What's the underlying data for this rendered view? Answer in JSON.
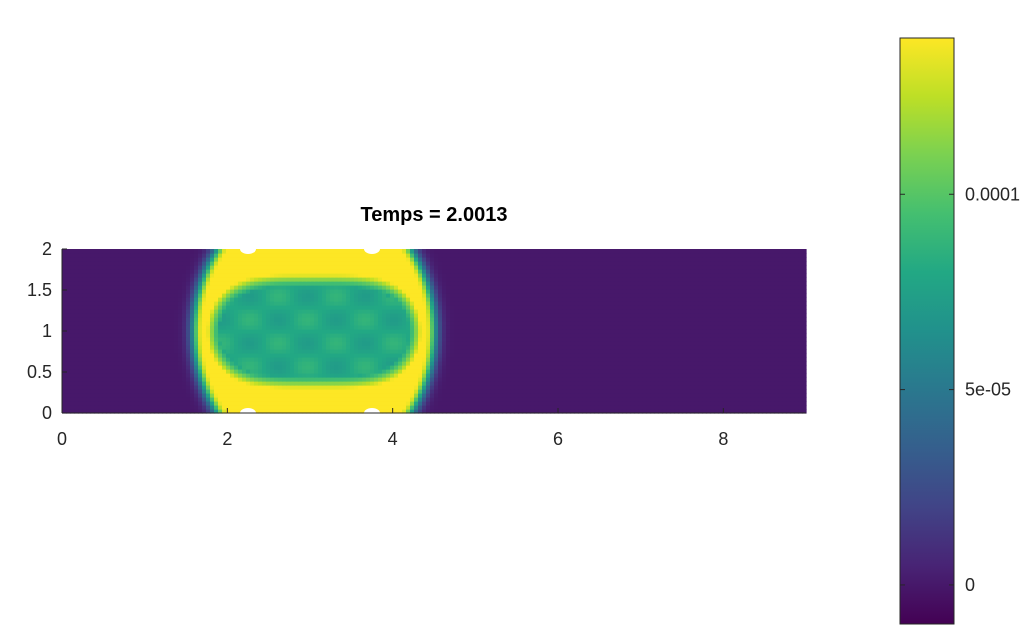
{
  "chart_data": {
    "type": "heatmap",
    "title": "Temps = 2.0013",
    "xlabel": "",
    "ylabel": "",
    "xlim": [
      0,
      9
    ],
    "ylim": [
      0,
      2
    ],
    "x_ticks": [
      0,
      2,
      4,
      6,
      8
    ],
    "x_tick_labels": [
      "0",
      "2",
      "4",
      "6",
      "8"
    ],
    "y_ticks": [
      0,
      0.5,
      1,
      1.5,
      2
    ],
    "y_tick_labels": [
      "0",
      "0.5",
      "1",
      "1.5",
      "2"
    ],
    "colormap": "viridis",
    "colorbar": {
      "clim": [
        -1e-05,
        0.00014
      ],
      "ticks": [
        0,
        5e-05,
        0.0001
      ],
      "tick_labels": [
        "0",
        "5e-05",
        "0.0001"
      ],
      "location": "right"
    },
    "field": {
      "background_value": 0.0,
      "front_value": 0.00014,
      "interior_value": 8e-05,
      "front_center_x": 3.05,
      "front_center_y": 1.0,
      "front_radius_x": 1.35,
      "front_radius_y": 1.55,
      "cavity_half_width_x": 1.15,
      "cavity_half_height_y": 0.55,
      "holes": [
        {
          "x": 2.25,
          "y": 2.0
        },
        {
          "x": 3.75,
          "y": 2.0
        },
        {
          "x": 2.25,
          "y": 0.0
        },
        {
          "x": 3.75,
          "y": 0.0
        }
      ]
    },
    "grid": false
  }
}
